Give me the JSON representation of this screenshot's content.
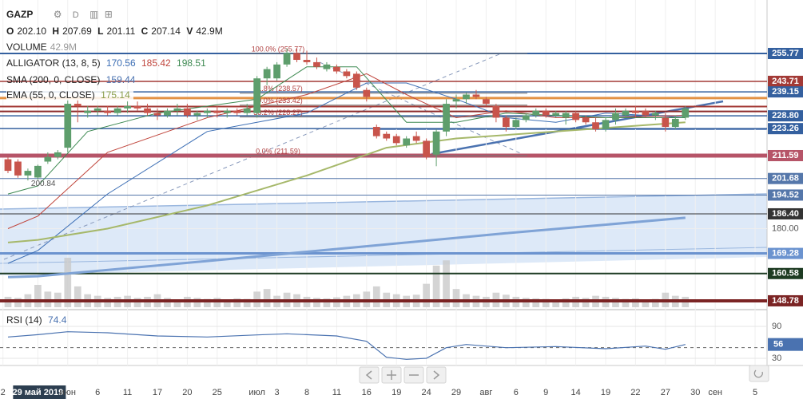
{
  "chart_data": {
    "type": "candlestick",
    "header": {
      "symbol": "GAZP",
      "interval": "D",
      "ohlc_labels": [
        "O",
        "H",
        "L",
        "C",
        "V"
      ],
      "ohlc_values": [
        "202.10",
        "207.69",
        "201.11",
        "207.14",
        "42.9M"
      ],
      "volume_text": "42.9M"
    },
    "indicators": {
      "volume": "VOLUME",
      "alligator": "ALLIGATOR (13, 8, 5)",
      "sma": "SMA (200, 0, CLOSE)",
      "ema": "EMA (55, 0, CLOSE)"
    },
    "up_color": "#5e9e6c",
    "down_color": "#c8544b",
    "volume_color": "#c9c9c9",
    "candles": {
      "open": [
        210,
        209,
        203,
        202.1,
        209,
        211,
        215,
        234,
        230,
        231,
        231,
        230,
        232,
        233,
        232,
        230,
        229,
        231,
        232,
        229,
        230,
        231,
        230,
        231,
        230,
        230,
        245,
        245,
        251,
        256,
        253,
        252,
        249,
        250,
        248,
        247,
        240,
        224,
        221,
        220,
        216,
        220,
        218,
        212,
        222,
        235,
        236,
        238,
        236,
        233,
        228,
        224,
        227,
        229,
        231,
        229,
        228,
        230,
        228,
        226,
        223,
        227,
        229,
        231,
        231,
        229,
        228,
        224,
        228
      ],
      "high": [
        211,
        210,
        206,
        207.69,
        213,
        214,
        236,
        236,
        233,
        233,
        233,
        233,
        235,
        235,
        234,
        232,
        232,
        234,
        234,
        231,
        232,
        233,
        232,
        232,
        234,
        246,
        250,
        252,
        258,
        258,
        257,
        254,
        252,
        251,
        249,
        248,
        241,
        225,
        222,
        221,
        220,
        222,
        219,
        223,
        236,
        238,
        239,
        240,
        237,
        234,
        229,
        228,
        230,
        232,
        232,
        231,
        231,
        231,
        229,
        228,
        228,
        232,
        232,
        233,
        232,
        231,
        230,
        229,
        233
      ],
      "low": [
        204,
        202,
        200.84,
        201.11,
        208,
        210,
        213,
        226,
        228,
        229,
        229,
        229,
        230,
        231,
        229,
        227,
        228,
        229,
        228,
        227,
        228,
        228,
        228,
        229,
        229,
        228,
        242,
        244,
        250,
        252,
        251,
        249,
        248,
        247,
        245,
        240,
        235,
        219,
        218,
        216,
        215,
        217,
        210,
        207,
        220,
        232,
        234,
        236,
        233,
        226,
        222,
        223,
        226,
        228,
        228,
        228,
        225,
        226,
        225,
        222,
        222,
        225,
        228,
        228,
        228,
        227,
        222,
        223,
        227
      ],
      "close": [
        205,
        203,
        205,
        207.14,
        211,
        213,
        234,
        233,
        231,
        232,
        230,
        232,
        233,
        232,
        230,
        229,
        231,
        232,
        229,
        230,
        231,
        230,
        231,
        230,
        232,
        245,
        249,
        251,
        256,
        253,
        252,
        250,
        251,
        248,
        246,
        241,
        237,
        220,
        219,
        217,
        219,
        218,
        211,
        222,
        234,
        236,
        238,
        237,
        234,
        228,
        224,
        227,
        229,
        231,
        229,
        230,
        230,
        227,
        226,
        223,
        227,
        230,
        231,
        230,
        229,
        230,
        224,
        227.5,
        232
      ]
    },
    "volume": [
      20,
      18,
      25,
      42.9,
      30,
      28,
      95,
      40,
      25,
      22,
      18,
      20,
      22,
      18,
      20,
      25,
      18,
      15,
      20,
      18,
      16,
      18,
      15,
      17,
      16,
      30,
      35,
      22,
      28,
      25,
      20,
      18,
      17,
      19,
      22,
      25,
      30,
      40,
      28,
      25,
      22,
      24,
      45,
      80,
      90,
      35,
      25,
      22,
      20,
      28,
      24,
      20,
      18,
      17,
      16,
      15,
      17,
      20,
      18,
      22,
      20,
      18,
      16,
      17,
      15,
      16,
      28,
      22,
      20
    ],
    "series": [
      {
        "color": "#3d6fb5",
        "width": 1,
        "x": [
          0,
          3,
          10,
          20,
          30,
          36,
          40,
          45,
          50,
          55,
          60,
          68
        ],
        "values": [
          165,
          170.56,
          195,
          222,
          230,
          243,
          243,
          236,
          228,
          226,
          230,
          228
        ]
      },
      {
        "color": "#c0453c",
        "width": 1,
        "x": [
          0,
          3,
          10,
          20,
          30,
          36,
          40,
          45,
          50,
          55,
          60,
          68
        ],
        "values": [
          180,
          185.42,
          213,
          228,
          238,
          247,
          238,
          228,
          231,
          228,
          228,
          229
        ]
      },
      {
        "color": "#3e8a52",
        "width": 1,
        "x": [
          0,
          3,
          8,
          15,
          25,
          30,
          35,
          40,
          45,
          50,
          55,
          60,
          68
        ],
        "values": [
          195,
          198.51,
          222,
          230,
          236,
          250,
          250,
          226,
          226,
          230,
          229,
          228,
          228
        ]
      },
      {
        "color": "#7fa3d6",
        "width": 3,
        "x": [
          0,
          3,
          20,
          35,
          50,
          68
        ],
        "values": [
          159,
          159.44,
          166,
          172,
          178,
          184.7
        ]
      },
      {
        "color": "#a6b86a",
        "width": 2,
        "x": [
          0,
          3,
          10,
          20,
          30,
          38,
          45,
          55,
          68
        ],
        "values": [
          174,
          175.14,
          180,
          190,
          203,
          215,
          219,
          222,
          226
        ]
      }
    ],
    "levels": [
      {
        "value": 255.77,
        "color": "#34609f",
        "width": 2
      },
      {
        "value": 243.71,
        "color": "#a33a36",
        "width": 1.5
      },
      {
        "value": 239.15,
        "color": "#34609f",
        "width": 1.5
      },
      {
        "value": 236.5,
        "color": "#e39245",
        "width": 3,
        "hidden": true
      },
      {
        "value": 232.8,
        "color": "#a33a36",
        "width": 2,
        "hidden": true
      },
      {
        "value": 230.7,
        "color": "#8c2a2a",
        "width": 2,
        "hidden": true
      },
      {
        "value": {
          "value": 228.8,
          "label": "228.80"
        },
        "color": "#34609f",
        "width": 1.5
      },
      {
        "value": 223.26,
        "color": "#34609f",
        "width": 1.5
      },
      {
        "value": 211.59,
        "color": "#b65468",
        "width": 5
      },
      {
        "value": 201.68,
        "color": "#5577aa",
        "width": 1
      },
      {
        "value": 194.52,
        "color": "#5577aa",
        "width": 1
      },
      {
        "value": {
          "value": 186.4,
          "label": "186.40"
        },
        "color": "#333333",
        "width": 1
      },
      {
        "value": 169.28,
        "color": "#6b93cf",
        "width": 3
      },
      {
        "value": 160.58,
        "color": "#1d3b22",
        "width": 2
      },
      {
        "value": 148.78,
        "color": "#7b2424",
        "width": 4
      }
    ],
    "fib": [
      {
        "value": 255.77,
        "label": "100.0% (255.77)"
      },
      {
        "value": 238.57,
        "label": "61.8% (238.57)"
      },
      {
        "value": 233.42,
        "label": "50.0% (233.42)"
      },
      {
        "value": 228.27,
        "label": "38.2% (228.27)"
      },
      {
        "value": 211.59,
        "label": "0.0% (211.59)"
      }
    ],
    "xlim": [
      -0.8,
      76.2
    ],
    "ylim": [
      146,
      278.9
    ],
    "yticks": [
      {
        "value": 180,
        "label": "180.00"
      }
    ],
    "xticks": [
      {
        "value": -0.5,
        "label": "2"
      },
      {
        "value": 3,
        "label": "29 май 2019"
      },
      {
        "value": 6,
        "label": "июн"
      },
      {
        "value": 9,
        "label": "6"
      },
      {
        "value": 12,
        "label": "11"
      },
      {
        "value": 15,
        "label": "17"
      },
      {
        "value": 18,
        "label": "20"
      },
      {
        "value": 21,
        "label": "25"
      },
      {
        "value": 25,
        "label": "июл"
      },
      {
        "value": 27,
        "label": "3"
      },
      {
        "value": 30,
        "label": "8"
      },
      {
        "value": 33,
        "label": "11"
      },
      {
        "value": 36,
        "label": "16"
      },
      {
        "value": 39,
        "label": "19"
      },
      {
        "value": 42,
        "label": "24"
      },
      {
        "value": 45,
        "label": "29"
      },
      {
        "value": 48,
        "label": "авг"
      },
      {
        "value": 51,
        "label": "6"
      },
      {
        "value": 54,
        "label": "9"
      },
      {
        "value": 57,
        "label": "14"
      },
      {
        "value": 60,
        "label": "19"
      },
      {
        "value": 63,
        "label": "22"
      },
      {
        "value": 66,
        "label": "27"
      },
      {
        "value": 69,
        "label": "30"
      },
      {
        "value": 71,
        "label": "сен"
      },
      {
        "value": 75,
        "label": "5"
      }
    ],
    "rsi": {
      "name": "RSI (14)",
      "color": "#4a72b0",
      "x": [
        0,
        3,
        6,
        10,
        15,
        20,
        25,
        28,
        33,
        36,
        38,
        40,
        42,
        44,
        46,
        50,
        55,
        60,
        64,
        66,
        68
      ],
      "values": [
        70,
        74.4,
        80,
        78,
        72,
        70,
        74,
        76,
        72,
        62,
        32,
        28,
        30,
        50,
        56,
        50,
        52,
        48,
        53,
        47,
        56
      ],
      "ylim": [
        21,
        118.5
      ],
      "yticks": [
        90,
        30
      ],
      "level": 50
    }
  }
}
